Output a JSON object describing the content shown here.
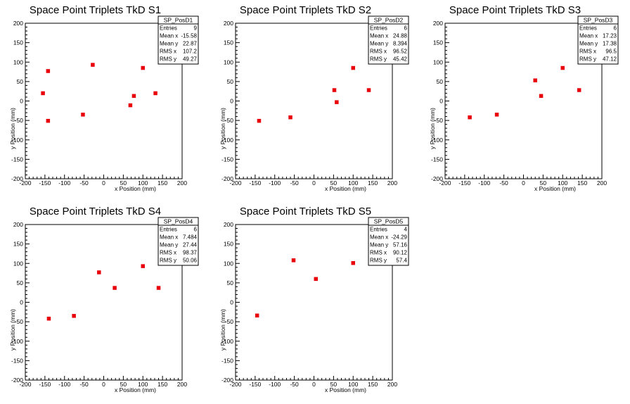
{
  "chart_data": [
    {
      "type": "scatter",
      "title": "Space Point Triplets TkD S1",
      "xlabel": "x Position (mm)",
      "ylabel": "y Position (mm)",
      "xlim": [
        -200,
        200
      ],
      "ylim": [
        -200,
        200
      ],
      "xticks": [
        -200,
        -150,
        -100,
        -50,
        0,
        50,
        100,
        150,
        200
      ],
      "yticks": [
        -200,
        -150,
        -100,
        -50,
        0,
        50,
        100,
        150,
        200
      ],
      "marker_color": "#e8000b",
      "points": [
        [
          -155,
          20
        ],
        [
          -142,
          77
        ],
        [
          -142,
          -51
        ],
        [
          -53,
          -35
        ],
        [
          -28,
          93
        ],
        [
          68,
          -11
        ],
        [
          77,
          13
        ],
        [
          100,
          85
        ],
        [
          132,
          20
        ]
      ],
      "stats": {
        "name": "SP_PosD1",
        "rows": [
          [
            "Entries",
            "9"
          ],
          [
            "Mean x",
            "-15.58"
          ],
          [
            "Mean y",
            "22.87"
          ],
          [
            "RMS x",
            "107.2"
          ],
          [
            "RMS y",
            "49.27"
          ]
        ]
      }
    },
    {
      "type": "scatter",
      "title": "Space Point Triplets TkD S2",
      "xlabel": "x Position (mm)",
      "ylabel": "y Position (mm)",
      "xlim": [
        -200,
        200
      ],
      "ylim": [
        -200,
        200
      ],
      "xticks": [
        -200,
        -150,
        -100,
        -50,
        0,
        50,
        100,
        150,
        200
      ],
      "yticks": [
        -200,
        -150,
        -100,
        -50,
        0,
        50,
        100,
        150,
        200
      ],
      "marker_color": "#e8000b",
      "points": [
        [
          -140,
          -51
        ],
        [
          -60,
          -42
        ],
        [
          52,
          28
        ],
        [
          58,
          -3
        ],
        [
          100,
          85
        ],
        [
          140,
          28
        ]
      ],
      "stats": {
        "name": "SP_PosD2",
        "rows": [
          [
            "Entries",
            "6"
          ],
          [
            "Mean x",
            "24.88"
          ],
          [
            "Mean y",
            "8.394"
          ],
          [
            "RMS x",
            "96.52"
          ],
          [
            "RMS y",
            "45.42"
          ]
        ]
      }
    },
    {
      "type": "scatter",
      "title": "Space Point Triplets TkD S3",
      "xlabel": "x Position (mm)",
      "ylabel": "y Position (mm)",
      "xlim": [
        -200,
        200
      ],
      "ylim": [
        -200,
        200
      ],
      "xticks": [
        -200,
        -150,
        -100,
        -50,
        0,
        50,
        100,
        150,
        200
      ],
      "yticks": [
        -200,
        -150,
        -100,
        -50,
        0,
        50,
        100,
        150,
        200
      ],
      "marker_color": "#e8000b",
      "points": [
        [
          -137,
          -42
        ],
        [
          -68,
          -35
        ],
        [
          30,
          53
        ],
        [
          45,
          13
        ],
        [
          100,
          85
        ],
        [
          142,
          28
        ]
      ],
      "stats": {
        "name": "SP_PosD3",
        "rows": [
          [
            "Entries",
            "6"
          ],
          [
            "Mean x",
            "17.23"
          ],
          [
            "Mean y",
            "17.38"
          ],
          [
            "RMS x",
            "96.5"
          ],
          [
            "RMS y",
            "47.12"
          ]
        ]
      }
    },
    {
      "type": "scatter",
      "title": "Space Point Triplets TkD S4",
      "xlabel": "x Position (mm)",
      "ylabel": "y Position (mm)",
      "xlim": [
        -200,
        200
      ],
      "ylim": [
        -200,
        200
      ],
      "xticks": [
        -200,
        -150,
        -100,
        -50,
        0,
        50,
        100,
        150,
        200
      ],
      "yticks": [
        -200,
        -150,
        -100,
        -50,
        0,
        50,
        100,
        150,
        200
      ],
      "marker_color": "#e8000b",
      "points": [
        [
          -140,
          -42
        ],
        [
          -76,
          -35
        ],
        [
          -12,
          77
        ],
        [
          28,
          37
        ],
        [
          100,
          93
        ],
        [
          140,
          37
        ]
      ],
      "stats": {
        "name": "SP_PosD4",
        "rows": [
          [
            "Entries",
            "6"
          ],
          [
            "Mean x",
            "7.484"
          ],
          [
            "Mean y",
            "27.44"
          ],
          [
            "RMS x",
            "98.37"
          ],
          [
            "RMS y",
            "50.06"
          ]
        ]
      }
    },
    {
      "type": "scatter",
      "title": "Space Point Triplets TkD S5",
      "xlabel": "x Position (mm)",
      "ylabel": "y Position (mm)",
      "xlim": [
        -200,
        200
      ],
      "ylim": [
        -200,
        200
      ],
      "xticks": [
        -200,
        -150,
        -100,
        -50,
        0,
        50,
        100,
        150,
        200
      ],
      "yticks": [
        -200,
        -150,
        -100,
        -50,
        0,
        50,
        100,
        150,
        200
      ],
      "marker_color": "#e8000b",
      "points": [
        [
          -145,
          -34
        ],
        [
          -52,
          108
        ],
        [
          5,
          60
        ],
        [
          100,
          101
        ]
      ],
      "stats": {
        "name": "SP_PosD5",
        "rows": [
          [
            "Entries",
            "4"
          ],
          [
            "Mean x",
            "-24.29"
          ],
          [
            "Mean y",
            "57.16"
          ],
          [
            "RMS x",
            "90.12"
          ],
          [
            "RMS y",
            "57.4"
          ]
        ]
      }
    }
  ]
}
